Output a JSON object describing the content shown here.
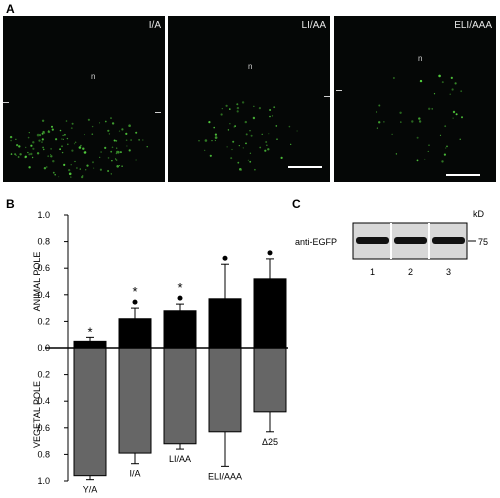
{
  "panels": {
    "A": "A",
    "B": "B",
    "C": "C"
  },
  "micrographs": [
    {
      "label": "I/A",
      "n_marker": "n"
    },
    {
      "label": "LI/AA",
      "n_marker": "n"
    },
    {
      "label": "ELI/AAA",
      "n_marker": "n"
    }
  ],
  "chart_data": {
    "type": "bar",
    "categories": [
      "Y/A",
      "I/A",
      "LI/AA",
      "ELI/AAA",
      "Δ25"
    ],
    "ylabel_top": "ANIMAL POLE",
    "ylabel_bottom": "VEGETAL POLE",
    "ylim": [
      -1.0,
      1.0
    ],
    "tick_labels": [
      "1.0",
      "0.8",
      "0.6",
      "0.4",
      "0.2",
      "0.0",
      "0.2",
      "0.4",
      "0.6",
      "0.8",
      "1.0"
    ],
    "series": [
      {
        "values": [
          0.05,
          0.22,
          0.28,
          0.37,
          0.52
        ],
        "errors": [
          0.03,
          0.08,
          0.05,
          0.26,
          0.15
        ],
        "color": "#000000"
      },
      {
        "values": [
          0.96,
          0.79,
          0.72,
          0.63,
          0.48
        ],
        "errors": [
          0.03,
          0.08,
          0.04,
          0.26,
          0.15
        ],
        "color": "#666666"
      }
    ],
    "markers": [
      "*",
      "* •",
      "* •",
      "•",
      "•"
    ]
  },
  "blot": {
    "unit": "kD",
    "antibody": "anti-EGFP",
    "marker": "75",
    "lanes": [
      "1",
      "2",
      "3"
    ]
  }
}
